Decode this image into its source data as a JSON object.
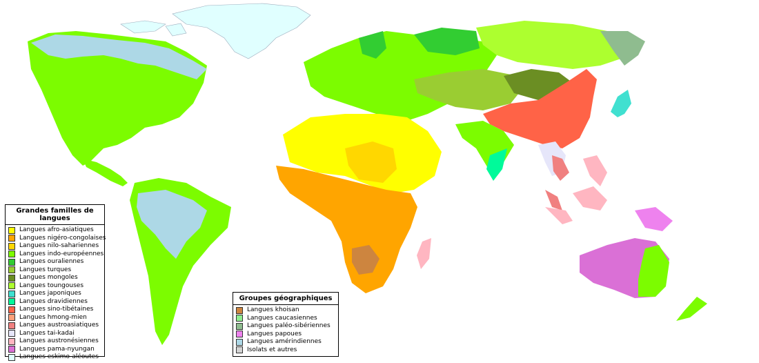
{
  "families_legend": {
    "title": "Grandes familles de langues",
    "items": [
      {
        "label": "Langues afro-asiatiques",
        "color": "#ffff00"
      },
      {
        "label": "Langues nigéro-congolaises",
        "color": "#ffa500"
      },
      {
        "label": "Langues nilo-sahariennes",
        "color": "#ffd700"
      },
      {
        "label": "Langues indo-européennes",
        "color": "#7cfc00"
      },
      {
        "label": "Langues ouraliennes",
        "color": "#32cd32"
      },
      {
        "label": "Langues turques",
        "color": "#9acd32"
      },
      {
        "label": "Langues mongoles",
        "color": "#6b8e23"
      },
      {
        "label": "Langues toungouses",
        "color": "#adff2f"
      },
      {
        "label": "Langues japoniques",
        "color": "#40e0d0"
      },
      {
        "label": "Langues dravidiennes",
        "color": "#00fa9a"
      },
      {
        "label": "Langues sino-tibétaines",
        "color": "#ff6347"
      },
      {
        "label": "Langues hmong-mien",
        "color": "#ffa07a"
      },
      {
        "label": "Langues austroasiatiques",
        "color": "#f08080"
      },
      {
        "label": "Langues tai-kadai",
        "color": "#e6e6fa"
      },
      {
        "label": "Langues austronésiennes",
        "color": "#ffb6c1"
      },
      {
        "label": "Langues pama-nyungan",
        "color": "#da70d6"
      },
      {
        "label": "Langues eskimo-aléoutes",
        "color": "#e0ffff"
      }
    ]
  },
  "geo_legend": {
    "title": "Groupes géographiques",
    "items": [
      {
        "label": "Langues khoisan",
        "color": "#cd853f"
      },
      {
        "label": "Langues caucasiennes",
        "color": "#90ee90"
      },
      {
        "label": "Langues paléo-sibériennes",
        "color": "#8fbc8f"
      },
      {
        "label": "Langues papoues",
        "color": "#ee82ee"
      },
      {
        "label": "Langues amérindiennes",
        "color": "#add8e6"
      },
      {
        "label": "Isolats et autres",
        "color": "#d3d3d3"
      }
    ]
  }
}
